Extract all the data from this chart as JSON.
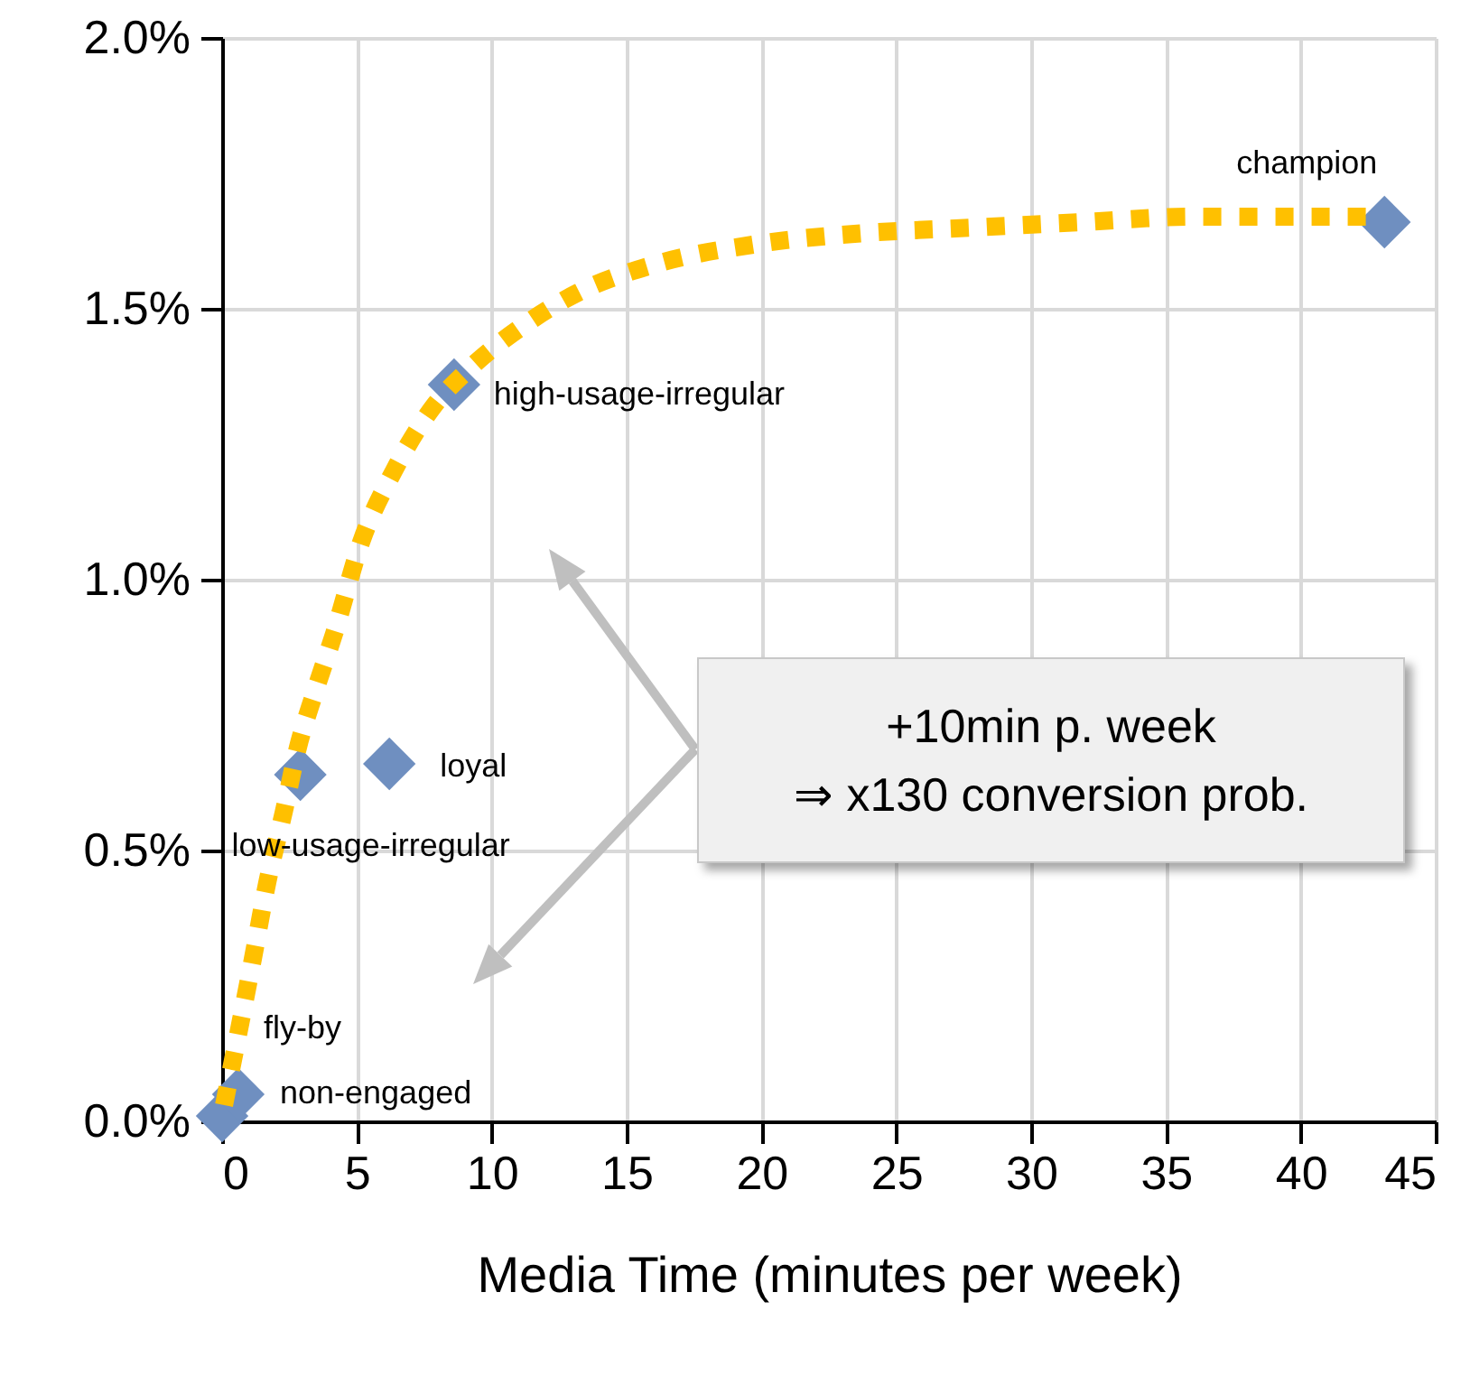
{
  "chart_data": {
    "type": "scatter",
    "xlabel": "Media Time (minutes per week)",
    "xlim": [
      0,
      45
    ],
    "xticks": [
      0,
      5,
      10,
      15,
      20,
      25,
      30,
      35,
      40,
      45
    ],
    "ylim": [
      0,
      2
    ],
    "yticks": [
      {
        "value": 0,
        "label": "0.0%"
      },
      {
        "value": 0.5,
        "label": "0.5%"
      },
      {
        "value": 1,
        "label": "1.0%"
      },
      {
        "value": 1.5,
        "label": "1.5%"
      },
      {
        "value": 2,
        "label": "2.0%"
      }
    ],
    "grid": true,
    "series": [
      {
        "type": "line",
        "color": "#ffc000",
        "line_style": "dotted",
        "marker": "none",
        "x": [
          0.07,
          0.27,
          0.67,
          1.14,
          1.67,
          2.28,
          2.81,
          3.42,
          4.15,
          5.16,
          6.36,
          7.84,
          9.18,
          11.2,
          13.2,
          15.9,
          19.9,
          23.9,
          27.9,
          31.9,
          36,
          40,
          42.7
        ],
        "values": [
          0.03,
          0.08,
          0.18,
          0.3,
          0.44,
          0.57,
          0.69,
          0.79,
          0.9,
          1.07,
          1.2,
          1.32,
          1.39,
          1.47,
          1.53,
          1.58,
          1.62,
          1.64,
          1.65,
          1.66,
          1.67,
          1.67,
          1.67
        ]
      },
      {
        "color": "#6f8fc0",
        "marker": "diamond",
        "x": [
          0,
          0.6,
          2.9,
          6.2,
          8.6,
          43.1
        ],
        "values": [
          0.01,
          0.05,
          0.64,
          0.66,
          1.36,
          1.66
        ]
      }
    ],
    "annotations": [
      {
        "text": "non-engaged",
        "x": 0,
        "y": 0.01
      },
      {
        "text": "fly-by",
        "x": 0.6,
        "y": 0.05
      },
      {
        "text": "low-usage-irregular",
        "x": 2.9,
        "y": 0.64
      },
      {
        "text": "loyal",
        "x": 6.2,
        "y": 0.66
      },
      {
        "text": "high-usage-irregular",
        "x": 8.6,
        "y": 1.36
      },
      {
        "text": "champion",
        "x": 43.1,
        "y": 1.66
      },
      "+10min p. week\n⇒ x130 conversion prob."
    ]
  }
}
